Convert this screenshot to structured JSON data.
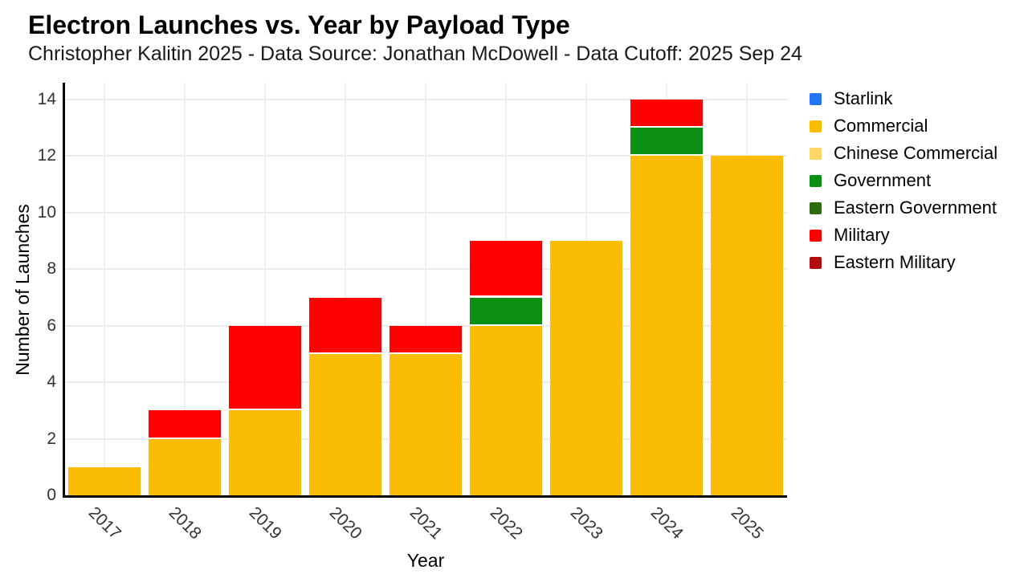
{
  "page": {
    "background": "#ffffff"
  },
  "chart_data": {
    "type": "bar",
    "stacked": true,
    "title": "Electron Launches vs. Year by Payload Type",
    "subtitle": "Christopher Kalitin 2025 - Data Source: Jonathan McDowell - Data Cutoff: 2025 Sep 24",
    "xlabel": "Year",
    "ylabel": "Number of Launches",
    "categories": [
      "2017",
      "2018",
      "2019",
      "2020",
      "2021",
      "2022",
      "2023",
      "2024",
      "2025"
    ],
    "yticks": [
      0,
      2,
      4,
      6,
      8,
      10,
      12,
      14
    ],
    "ylim": [
      0,
      14.6
    ],
    "grid": true,
    "legend_position": "right",
    "series": [
      {
        "name": "Starlink",
        "color": "#2374f2",
        "values": [
          0,
          0,
          0,
          0,
          0,
          0,
          0,
          0,
          0
        ]
      },
      {
        "name": "Commercial",
        "color": "#fbbc04",
        "values": [
          1,
          2,
          3,
          5,
          5,
          6,
          9,
          12,
          12
        ]
      },
      {
        "name": "Chinese Commercial",
        "color": "#fdd663",
        "values": [
          0,
          0,
          0,
          0,
          0,
          0,
          0,
          0,
          0
        ]
      },
      {
        "name": "Government",
        "color": "#0b9014",
        "values": [
          0,
          0,
          0,
          0,
          0,
          1,
          0,
          1,
          0
        ]
      },
      {
        "name": "Eastern Government",
        "color": "#2e6b10",
        "values": [
          0,
          0,
          0,
          0,
          0,
          0,
          0,
          0,
          0
        ]
      },
      {
        "name": "Military",
        "color": "#ff0000",
        "values": [
          0,
          1,
          3,
          2,
          1,
          2,
          0,
          1,
          0
        ]
      },
      {
        "name": "Eastern Military",
        "color": "#b30d0f",
        "values": [
          0,
          0,
          0,
          0,
          0,
          0,
          0,
          0,
          0
        ]
      }
    ],
    "bar_totals": [
      1,
      3,
      6,
      7,
      6,
      9,
      9,
      14,
      12
    ]
  }
}
